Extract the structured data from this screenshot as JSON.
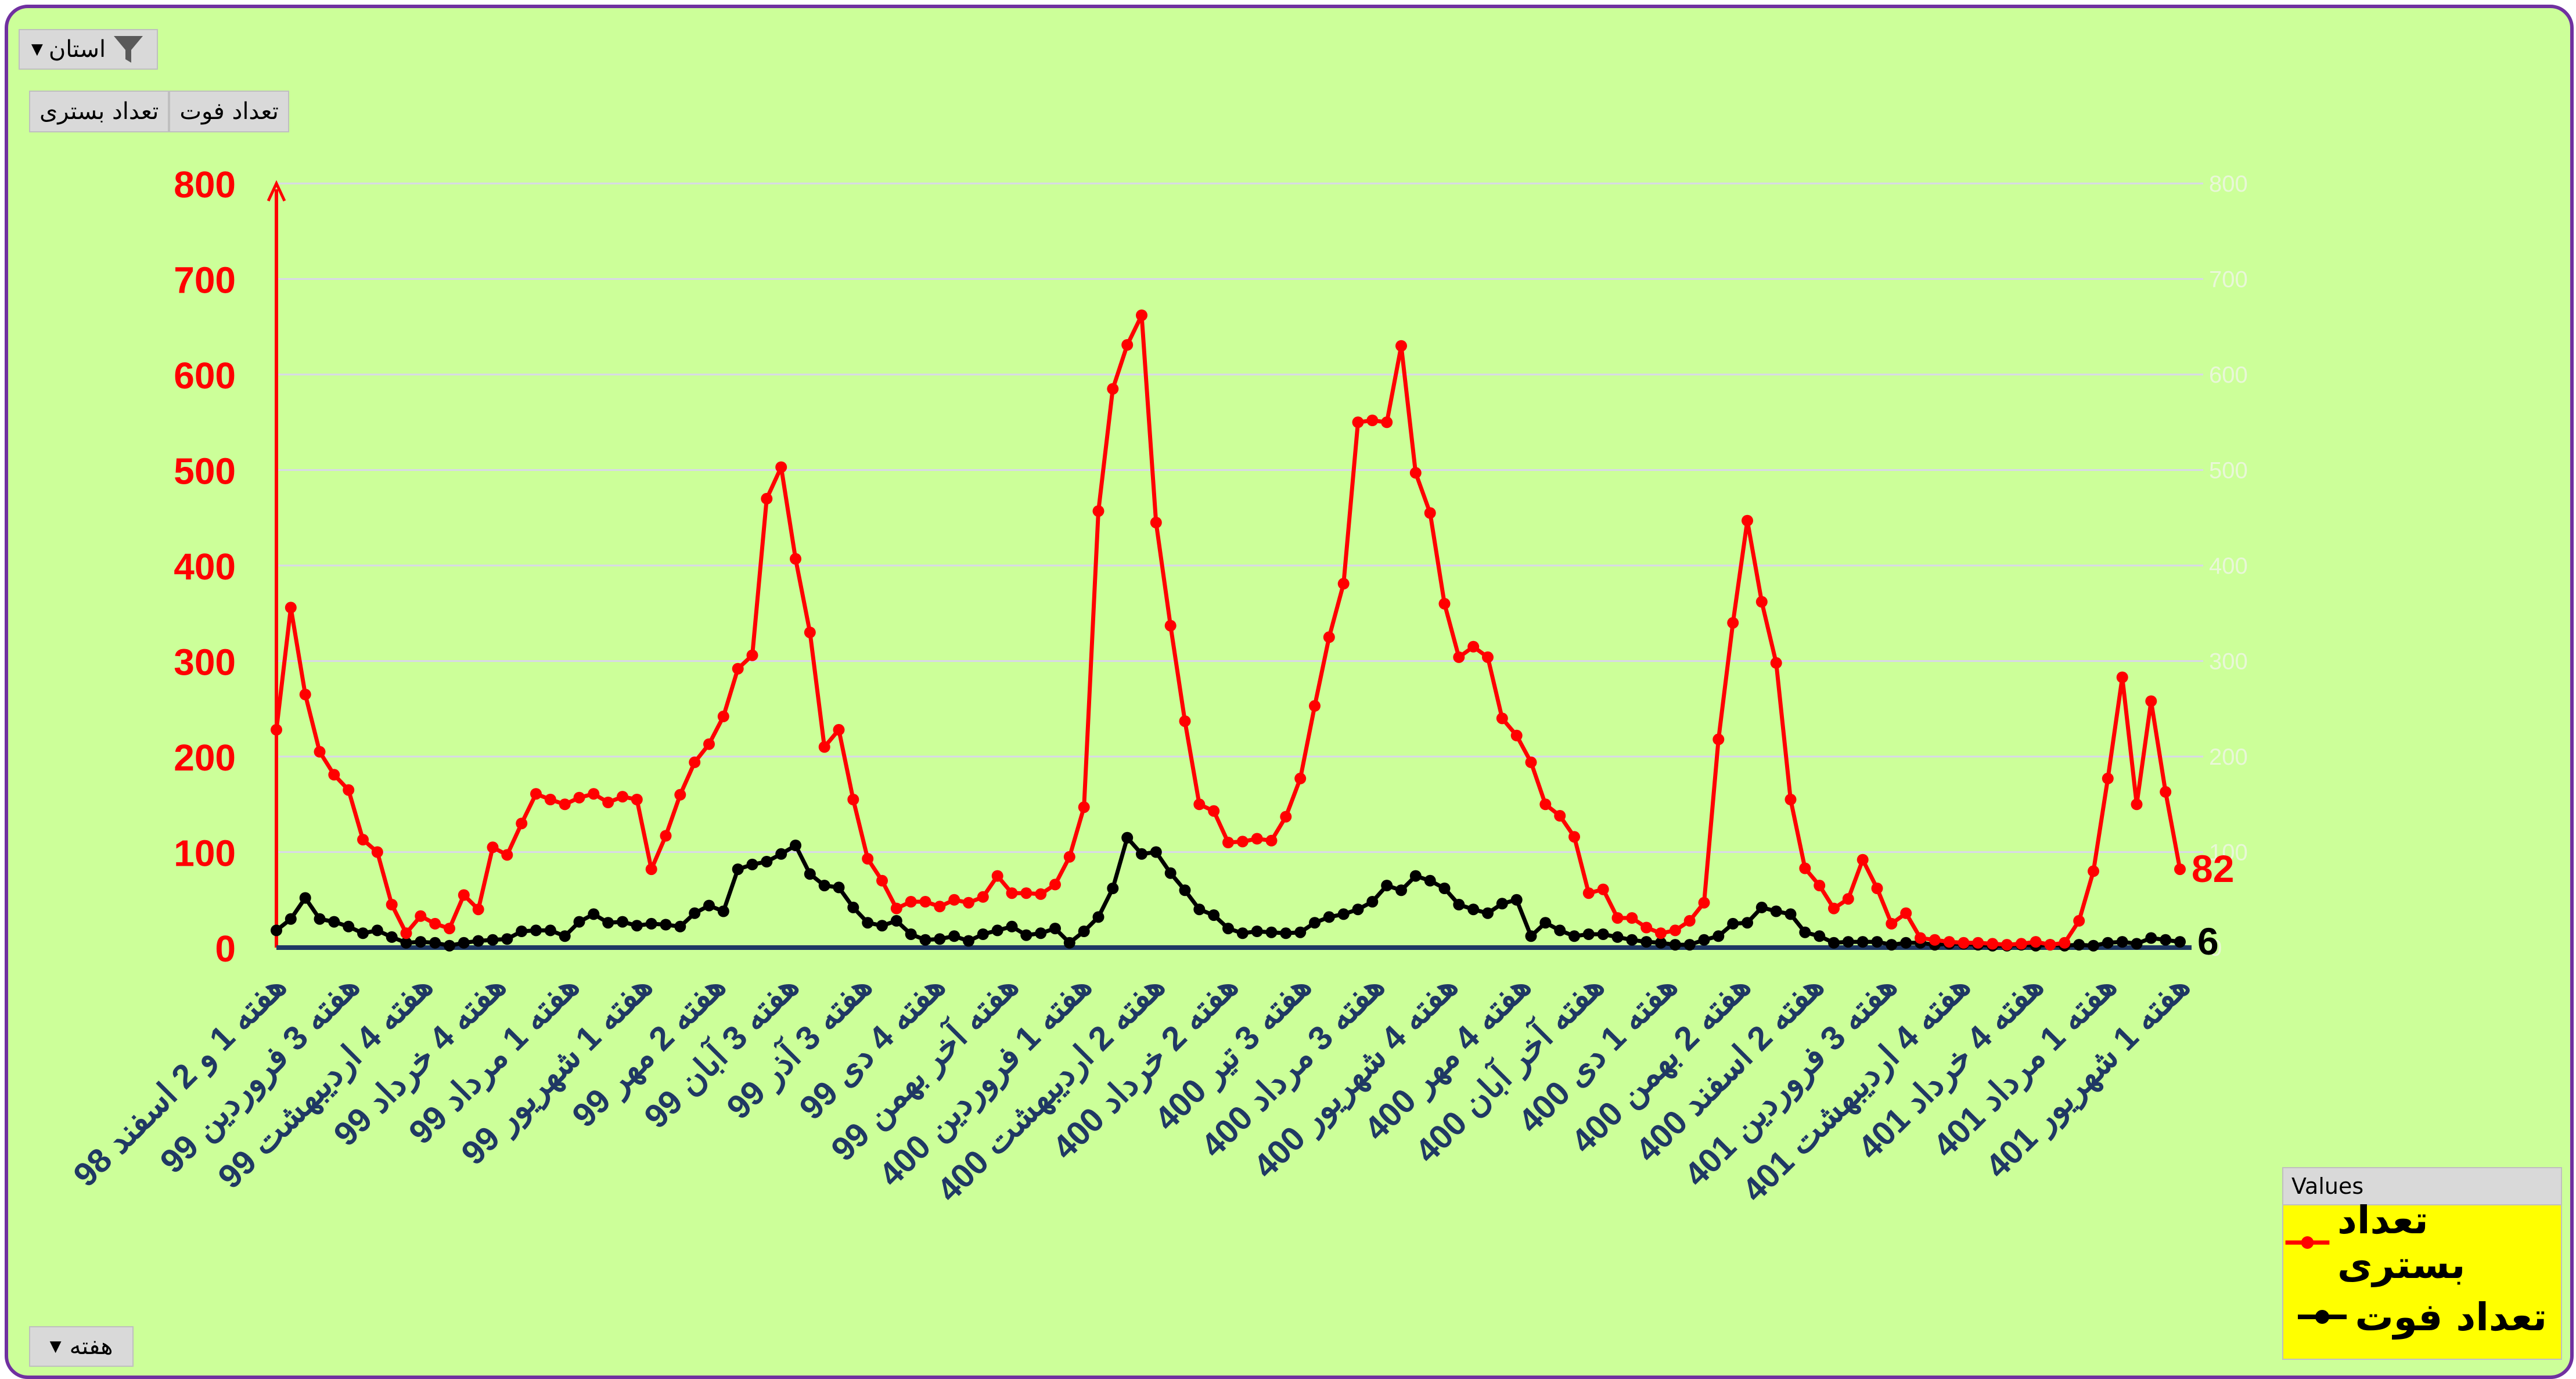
{
  "filters": {
    "province_label": "استان",
    "week_label": "هفته",
    "series_buttons": [
      "تعداد فوت",
      "تعداد بستری"
    ]
  },
  "legend": {
    "title": "Values",
    "items": [
      {
        "label": "تعداد بستری",
        "color": "#ff0000"
      },
      {
        "label": "تعداد فوت",
        "color": "#000000"
      }
    ]
  },
  "end_labels": {
    "hospitalized": "82",
    "deaths": "6"
  },
  "colors": {
    "background": "#ccff99",
    "border": "#7030a0",
    "hospitalized": "#ff0000",
    "deaths": "#000000",
    "axis_labels": "#1f3864"
  },
  "chart_data": {
    "type": "line",
    "title": "",
    "xlabel": "",
    "ylabel": "",
    "ylim": [
      0,
      800
    ],
    "yticks": [
      0,
      100,
      200,
      300,
      400,
      500,
      600,
      700,
      800
    ],
    "grid": true,
    "legend_position": "bottom-right",
    "x_tick_labels": [
      "هفته 1 و 2 اسفند 98",
      "هفته 3 فروردین 99",
      "هفته 4 اردیبهشت 99",
      "هفته 4 خرداد 99",
      "هفته 1 مرداد 99",
      "هفته 1 شهریور 99",
      "هفته 2 مهر 99",
      "هفته 3 آبان 99",
      "هفته 3 آذر 99",
      "هفته 4 دی 99",
      "هفته آخر بهمن 99",
      "هفته 1 فروردین 400",
      "هفته 2 اردیبهشت 400",
      "هفته 2 خرداد 400",
      "هفته 3 تیر 400",
      "هفته 3 مرداد 400",
      "هفته 4 شهریور 400",
      "هفته 4 مهر 400",
      "هفته آخر آبان 400",
      "هفته 1 دی 400",
      "هفته 2 بهمن 400",
      "هفته 2 اسفند 400",
      "هفته 3 فروردین 401",
      "هفته 4 اردیبهشت 401",
      "هفته 4 خرداد 401",
      "هفته 1 مرداد 401",
      "هفته 1 شهریور 401"
    ],
    "series": [
      {
        "name": "تعداد بستری",
        "values": [
          228,
          356,
          265,
          205,
          181,
          165,
          113,
          100,
          45,
          15,
          33,
          25,
          20,
          55,
          40,
          105,
          97,
          130,
          161,
          155,
          150,
          157,
          161,
          152,
          158,
          155,
          82,
          117,
          160,
          194,
          213,
          242,
          292,
          306,
          470,
          503,
          407,
          330,
          210,
          228,
          155,
          93,
          70,
          41,
          48,
          48,
          43,
          50,
          47,
          53,
          75,
          57,
          57,
          56,
          66,
          95,
          147,
          457,
          585,
          631,
          662,
          445,
          337,
          237,
          150,
          143,
          110,
          111,
          114,
          112,
          137,
          177,
          253,
          325,
          381,
          550,
          552,
          550,
          630,
          497,
          455,
          360,
          304,
          315,
          304,
          240,
          222,
          194,
          150,
          138,
          116,
          57,
          61,
          31,
          31,
          21,
          15,
          18,
          28,
          47,
          218,
          340,
          447,
          362,
          298,
          155,
          83,
          65,
          41,
          51,
          92,
          62,
          25,
          36,
          10,
          8,
          6,
          5,
          5,
          4,
          3,
          4,
          6,
          3,
          5,
          28,
          80,
          177,
          283,
          150,
          258,
          163,
          82
        ]
      },
      {
        "name": "تعداد فوت",
        "values": [
          18,
          30,
          52,
          30,
          27,
          22,
          15,
          18,
          11,
          5,
          6,
          5,
          2,
          5,
          7,
          8,
          9,
          17,
          18,
          18,
          12,
          27,
          35,
          26,
          27,
          23,
          25,
          24,
          22,
          36,
          44,
          38,
          82,
          87,
          90,
          98,
          107,
          77,
          65,
          63,
          42,
          26,
          23,
          28,
          14,
          8,
          9,
          12,
          7,
          14,
          18,
          22,
          13,
          15,
          20,
          5,
          17,
          32,
          62,
          115,
          98,
          100,
          78,
          60,
          40,
          34,
          20,
          15,
          17,
          16,
          15,
          16,
          26,
          32,
          35,
          40,
          48,
          65,
          60,
          75,
          70,
          62,
          45,
          40,
          36,
          46,
          50,
          12,
          26,
          18,
          12,
          14,
          14,
          11,
          8,
          6,
          5,
          3,
          3,
          8,
          12,
          25,
          26,
          42,
          38,
          35,
          16,
          12,
          5,
          6,
          6,
          6,
          3,
          5,
          5,
          3,
          4,
          4,
          3,
          2,
          2,
          3,
          2,
          3,
          2,
          3,
          2,
          5,
          6,
          4,
          10,
          8,
          6
        ]
      }
    ]
  }
}
